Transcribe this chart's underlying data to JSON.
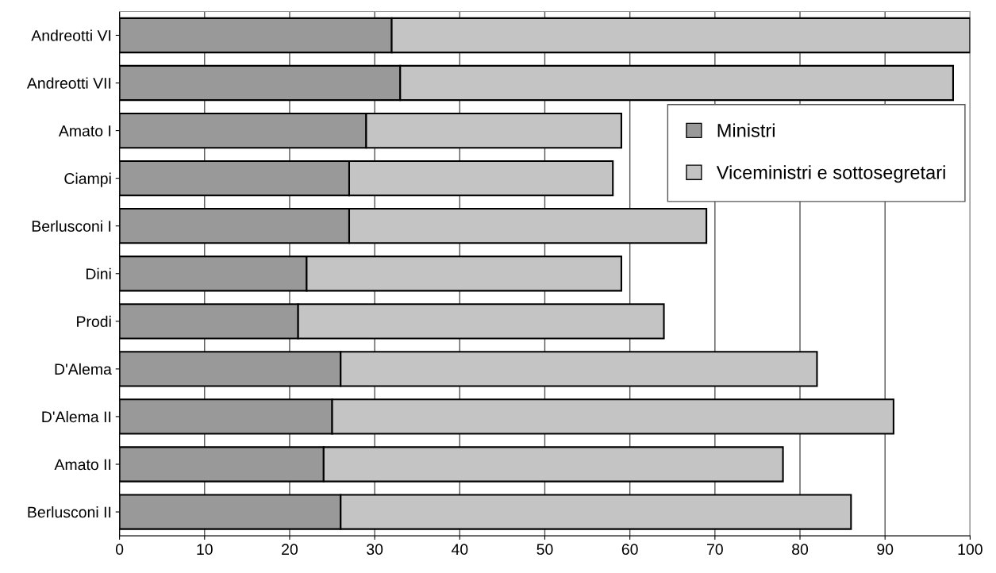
{
  "chart_data": {
    "type": "bar",
    "orientation": "horizontal",
    "stacked": true,
    "categories": [
      "Andreotti VI",
      "Andreotti VII",
      "Amato I",
      "Ciampi",
      "Berlusconi I",
      "Dini",
      "Prodi",
      "D'Alema",
      "D'Alema II",
      "Amato II",
      "Berlusconi II"
    ],
    "series": [
      {
        "name": "Ministri",
        "color": "#999999",
        "values": [
          32,
          33,
          29,
          27,
          27,
          22,
          21,
          26,
          25,
          24,
          26
        ]
      },
      {
        "name": "Viceministri e sottosegretari",
        "color": "#c4c4c4",
        "values": [
          68,
          65,
          30,
          31,
          42,
          37,
          43,
          56,
          66,
          54,
          60
        ]
      }
    ],
    "xlim": [
      0,
      100
    ],
    "xticks": [
      0,
      10,
      20,
      30,
      40,
      50,
      60,
      70,
      80,
      90,
      100
    ],
    "grid": "x",
    "legend": "right"
  }
}
